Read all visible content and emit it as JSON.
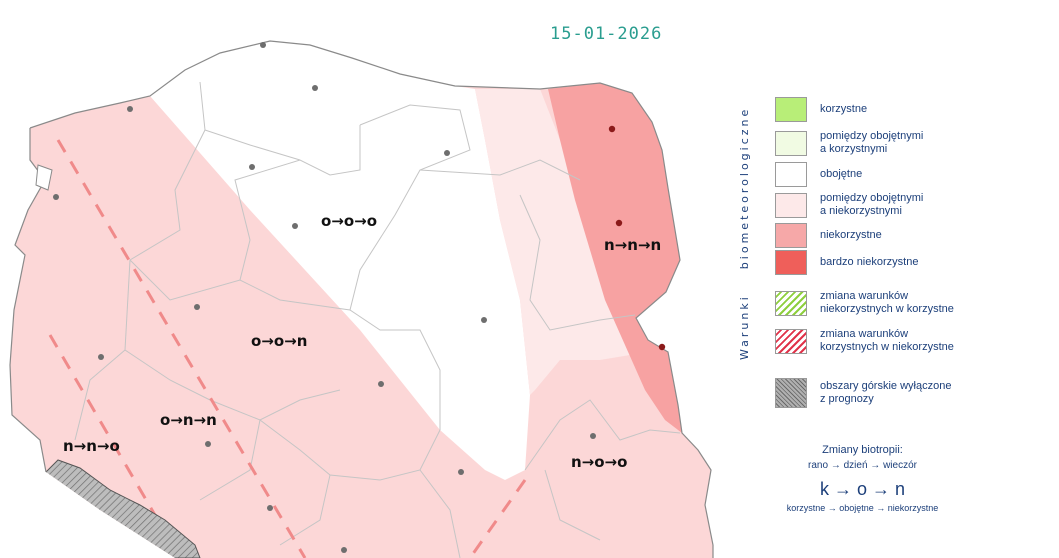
{
  "date": "15-01-2026",
  "regions": [
    {
      "id": "nw",
      "label": "o→o→o"
    },
    {
      "id": "east",
      "label": "n→n→n"
    },
    {
      "id": "center-west",
      "label": "o→o→n"
    },
    {
      "id": "sw-center",
      "label": "o→n→n"
    },
    {
      "id": "sw",
      "label": "n→n→o"
    },
    {
      "id": "se",
      "label": "n→o→o"
    }
  ],
  "legend": {
    "title_prefix": "Warunki",
    "title_main": "biometeorologiczne",
    "items": [
      {
        "label": "korzystne",
        "color": "#b8ee78"
      },
      {
        "label": "pomiędzy obojętnymi\na korzystnymi",
        "color": "#f1fbe3"
      },
      {
        "label": "obojętne",
        "color": "#ffffff"
      },
      {
        "label": "pomiędzy obojętnymi\na niekorzystnymi",
        "color": "#fde9e9"
      },
      {
        "label": "niekorzystne",
        "color": "#f6a8a8"
      },
      {
        "label": "bardzo niekorzystne",
        "color": "#ef5f5a"
      },
      {
        "label": "zmiana warunków\nniekorzystnych w korzystne",
        "color": "#8ecf3e"
      },
      {
        "label": "zmiana warunków\nkorzystnych w niekorzystne",
        "color": "#e0334a"
      },
      {
        "label": "obszary górskie wyłączone\nz prognozy",
        "color": "#a3a3a3"
      }
    ]
  },
  "explanation": {
    "title": "Zmiany biotropii:",
    "sequence": "rano → dzień → wieczór",
    "example": "k → o → n",
    "example_desc": "korzystne → obojętne → niekorzystne"
  },
  "colors": {
    "neutral": "#ffffff",
    "between_neutral_unfavorable": "#fde9e9",
    "unfavorable": "#fbd5d5",
    "very_unfavorable": "#f5a3a3",
    "change_to_unfavorable": "#f08a8a",
    "mountain": "#9a9a9a",
    "date_color": "#2a9d8f",
    "legend_text": "#1c3f7a"
  }
}
